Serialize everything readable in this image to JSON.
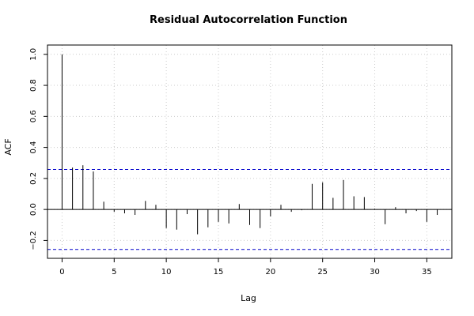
{
  "chart_data": {
    "type": "bar",
    "title": "Residual Autocorrelation Function",
    "xlabel": "Lag",
    "ylabel": "ACF",
    "xlim": [
      -1.4,
      37.4
    ],
    "ylim": [
      -0.315,
      1.06
    ],
    "x_ticks": [
      0,
      5,
      10,
      15,
      20,
      25,
      30,
      35
    ],
    "x_tick_labels": [
      "0",
      "5",
      "10",
      "15",
      "20",
      "25",
      "30",
      "35"
    ],
    "y_ticks": [
      -0.2,
      0.0,
      0.2,
      0.4,
      0.6,
      0.8,
      1.0
    ],
    "y_tick_labels": [
      "−0.2",
      "0.0",
      "0.2",
      "0.4",
      "0.6",
      "0.8",
      "1.0"
    ],
    "grid": true,
    "confidence_bound": 0.258,
    "colors": {
      "bars": "#000000",
      "bounds": "#0000cc",
      "grid": "#cccccc",
      "frame": "#000000"
    },
    "lags": [
      0,
      1,
      2,
      3,
      4,
      5,
      6,
      7,
      8,
      9,
      10,
      11,
      12,
      13,
      14,
      15,
      16,
      17,
      18,
      19,
      20,
      21,
      22,
      23,
      24,
      25,
      26,
      27,
      28,
      29,
      30,
      31,
      32,
      33,
      34,
      35,
      36
    ],
    "values": [
      1.0,
      0.27,
      0.285,
      0.245,
      0.05,
      -0.015,
      -0.025,
      -0.035,
      0.055,
      0.03,
      -0.12,
      -0.13,
      -0.03,
      -0.16,
      -0.115,
      -0.08,
      -0.09,
      0.035,
      -0.1,
      -0.12,
      -0.045,
      0.03,
      -0.015,
      -0.005,
      0.165,
      0.175,
      0.075,
      0.19,
      0.085,
      0.08,
      0.005,
      -0.095,
      0.015,
      -0.025,
      -0.01,
      -0.08,
      -0.035
    ]
  }
}
